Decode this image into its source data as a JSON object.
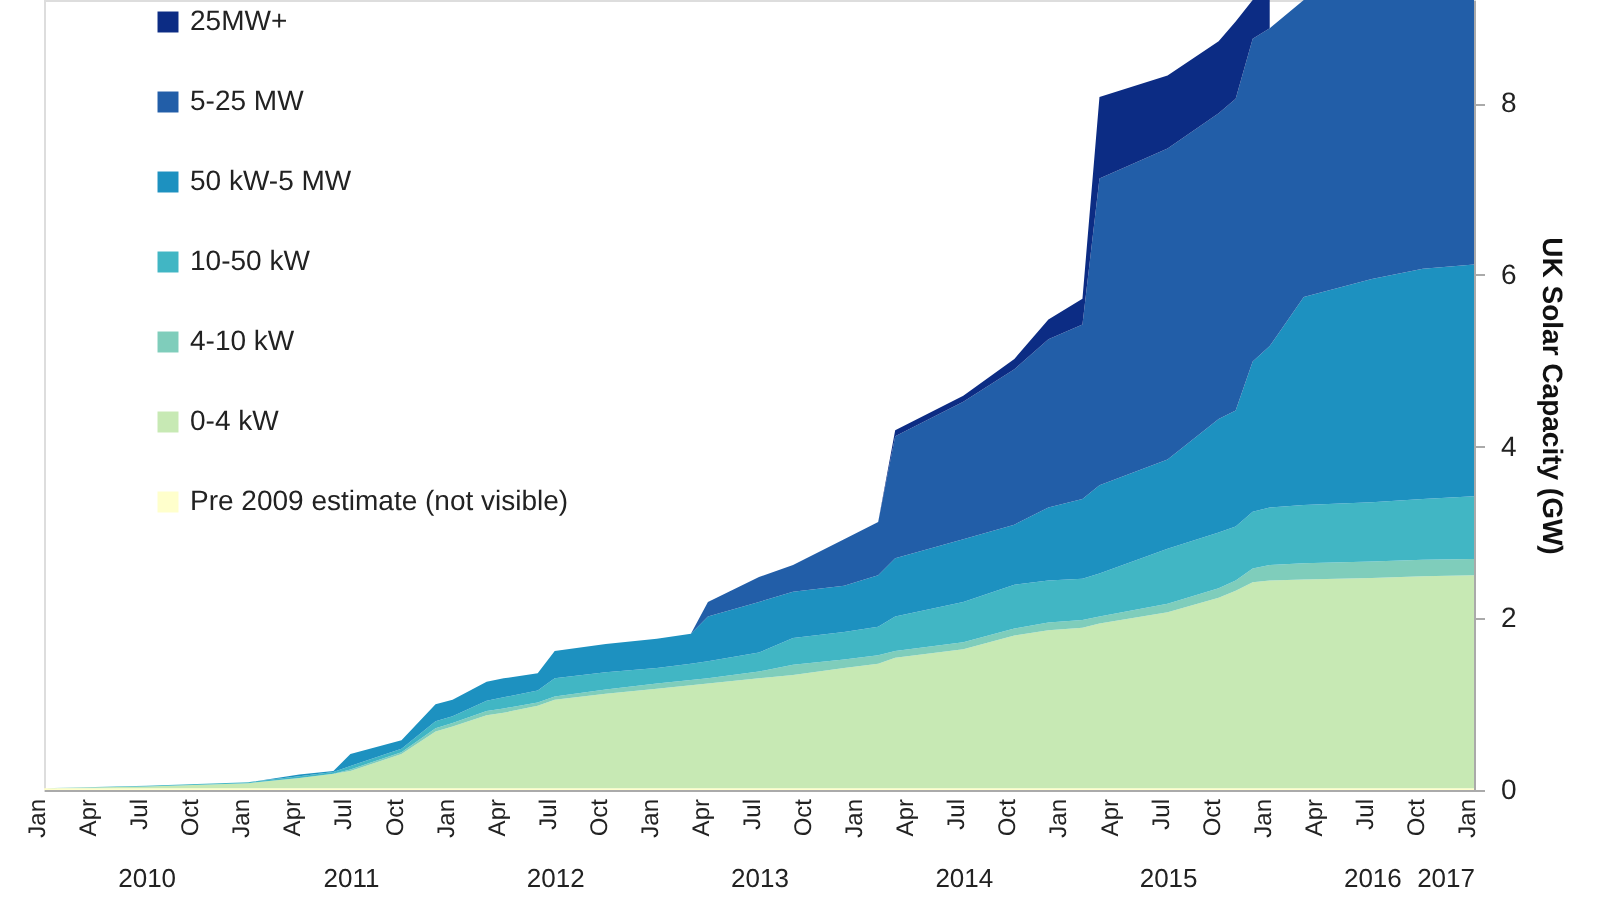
{
  "chart_data": {
    "type": "area",
    "stacked": true,
    "ylabel": "UK Solar Capacity (GW)",
    "x": [
      "2010-01",
      "2010-07",
      "2011-01",
      "2011-04",
      "2011-06",
      "2011-07",
      "2011-10",
      "2011-12",
      "2012-01",
      "2012-03",
      "2012-04",
      "2012-06",
      "2012-07",
      "2012-10",
      "2013-01",
      "2013-03",
      "2013-04",
      "2013-07",
      "2013-09",
      "2013-12",
      "2014-02",
      "2014-03",
      "2014-07",
      "2014-10",
      "2014-12",
      "2015-02",
      "2015-03",
      "2015-07",
      "2015-10",
      "2015-11",
      "2015-12",
      "2016-01",
      "2016-03",
      "2016-07",
      "2016-10",
      "2017-01"
    ],
    "series": [
      {
        "name": "Pre 2009 estimate (not visible)",
        "color": "#ffffcc",
        "values": [
          0.02,
          0.02,
          0.02,
          0.02,
          0.02,
          0.02,
          0.02,
          0.02,
          0.02,
          0.02,
          0.02,
          0.02,
          0.02,
          0.02,
          0.02,
          0.02,
          0.02,
          0.02,
          0.02,
          0.02,
          0.02,
          0.02,
          0.02,
          0.02,
          0.02,
          0.02,
          0.02,
          0.02,
          0.02,
          0.02,
          0.02,
          0.02,
          0.02,
          0.02,
          0.02,
          0.02
        ]
      },
      {
        "name": "0-4 kW",
        "color": "#c7e9b4",
        "values": [
          0,
          0.02,
          0.06,
          0.12,
          0.17,
          0.2,
          0.4,
          0.66,
          0.72,
          0.85,
          0.88,
          0.96,
          1.03,
          1.1,
          1.16,
          1.2,
          1.22,
          1.28,
          1.32,
          1.4,
          1.45,
          1.52,
          1.62,
          1.78,
          1.84,
          1.87,
          1.92,
          2.05,
          2.22,
          2.3,
          2.4,
          2.42,
          2.43,
          2.45,
          2.47,
          2.48
        ]
      },
      {
        "name": "4-10 kW",
        "color": "#7fcdbb",
        "values": [
          0,
          0,
          0,
          0,
          0,
          0.02,
          0.02,
          0.04,
          0.04,
          0.05,
          0.05,
          0.04,
          0.04,
          0.05,
          0.06,
          0.06,
          0.06,
          0.08,
          0.12,
          0.1,
          0.1,
          0.08,
          0.08,
          0.08,
          0.09,
          0.09,
          0.08,
          0.1,
          0.11,
          0.12,
          0.16,
          0.18,
          0.19,
          0.19,
          0.19,
          0.19
        ]
      },
      {
        "name": "10-50 kW",
        "color": "#41b6c4",
        "values": [
          0,
          0.01,
          0.01,
          0.02,
          0.02,
          0.04,
          0.04,
          0.08,
          0.08,
          0.12,
          0.13,
          0.14,
          0.21,
          0.2,
          0.18,
          0.19,
          0.2,
          0.22,
          0.31,
          0.32,
          0.33,
          0.4,
          0.47,
          0.51,
          0.49,
          0.48,
          0.5,
          0.64,
          0.65,
          0.63,
          0.66,
          0.67,
          0.68,
          0.69,
          0.71,
          0.73
        ]
      },
      {
        "name": "50 kW-5 MW",
        "color": "#1d91c0",
        "values": [
          0,
          0,
          0,
          0.02,
          0.01,
          0.14,
          0.1,
          0.2,
          0.19,
          0.22,
          0.22,
          0.2,
          0.32,
          0.33,
          0.34,
          0.35,
          0.52,
          0.59,
          0.54,
          0.54,
          0.6,
          0.68,
          0.73,
          0.7,
          0.85,
          0.93,
          1.03,
          1.04,
          1.32,
          1.35,
          1.75,
          1.88,
          2.42,
          2.6,
          2.68,
          2.7
        ]
      },
      {
        "name": "5-25 MW",
        "color": "#225ea8",
        "values": [
          0,
          0,
          0,
          0,
          0,
          0,
          0,
          0,
          0,
          0,
          0,
          0,
          0,
          0,
          0,
          0,
          0.17,
          0.29,
          0.31,
          0.54,
          0.62,
          1.42,
          1.6,
          1.81,
          1.96,
          2.03,
          3.57,
          3.62,
          3.56,
          3.63,
          3.76,
          3.7,
          3.46,
          3.25,
          3.13,
          3.08
        ]
      },
      {
        "name": "25MW+",
        "color": "#0c2c84",
        "values": [
          0,
          0,
          0,
          0,
          0,
          0,
          0,
          0,
          0,
          0,
          0,
          0,
          0,
          0,
          0,
          0,
          0,
          0,
          0,
          0,
          0,
          0.07,
          0.07,
          0.12,
          0.23,
          0.3,
          0.95,
          0.85,
          0.84,
          0.9,
          0.45,
          0.33,
          null,
          null,
          null,
          null
        ]
      }
    ],
    "xlim": [
      "2010-01",
      "2017-01"
    ],
    "xticks": [
      {
        "value": "2010-01",
        "label": "Jan"
      },
      {
        "value": "2010-04",
        "label": "Apr"
      },
      {
        "value": "2010-07",
        "label": "Jul"
      },
      {
        "value": "2010-10",
        "label": "Oct"
      },
      {
        "value": "2011-01",
        "label": "Jan"
      },
      {
        "value": "2011-04",
        "label": "Apr"
      },
      {
        "value": "2011-07",
        "label": "Jul"
      },
      {
        "value": "2011-10",
        "label": "Oct"
      },
      {
        "value": "2012-01",
        "label": "Jan"
      },
      {
        "value": "2012-04",
        "label": "Apr"
      },
      {
        "value": "2012-07",
        "label": "Jul"
      },
      {
        "value": "2012-10",
        "label": "Oct"
      },
      {
        "value": "2013-01",
        "label": "Jan"
      },
      {
        "value": "2013-04",
        "label": "Apr"
      },
      {
        "value": "2013-07",
        "label": "Jul"
      },
      {
        "value": "2013-10",
        "label": "Oct"
      },
      {
        "value": "2014-01",
        "label": "Jan"
      },
      {
        "value": "2014-04",
        "label": "Apr"
      },
      {
        "value": "2014-07",
        "label": "Jul"
      },
      {
        "value": "2014-10",
        "label": "Oct"
      },
      {
        "value": "2015-01",
        "label": "Jan"
      },
      {
        "value": "2015-04",
        "label": "Apr"
      },
      {
        "value": "2015-07",
        "label": "Jul"
      },
      {
        "value": "2015-10",
        "label": "Oct"
      },
      {
        "value": "2016-01",
        "label": "Jan"
      },
      {
        "value": "2016-04",
        "label": "Apr"
      },
      {
        "value": "2016-07",
        "label": "Jul"
      },
      {
        "value": "2016-10",
        "label": "Oct"
      },
      {
        "value": "2017-01",
        "label": "Jan"
      }
    ],
    "x2lim": [
      "2010-01",
      "2017-01"
    ],
    "x2ticks": [
      {
        "value": "2010-07",
        "label": "2010"
      },
      {
        "value": "2011-07",
        "label": "2011"
      },
      {
        "value": "2012-07",
        "label": "2012"
      },
      {
        "value": "2013-07",
        "label": "2013"
      },
      {
        "value": "2014-07",
        "label": "2014"
      },
      {
        "value": "2015-07",
        "label": "2015"
      },
      {
        "value": "2016-07",
        "label": "2016"
      },
      {
        "value": "2017-01",
        "label": "2017"
      }
    ],
    "ylim": [
      0,
      9.2
    ],
    "yticks": [
      0,
      2,
      4,
      6,
      8
    ],
    "grid": false,
    "legend": "top left"
  }
}
